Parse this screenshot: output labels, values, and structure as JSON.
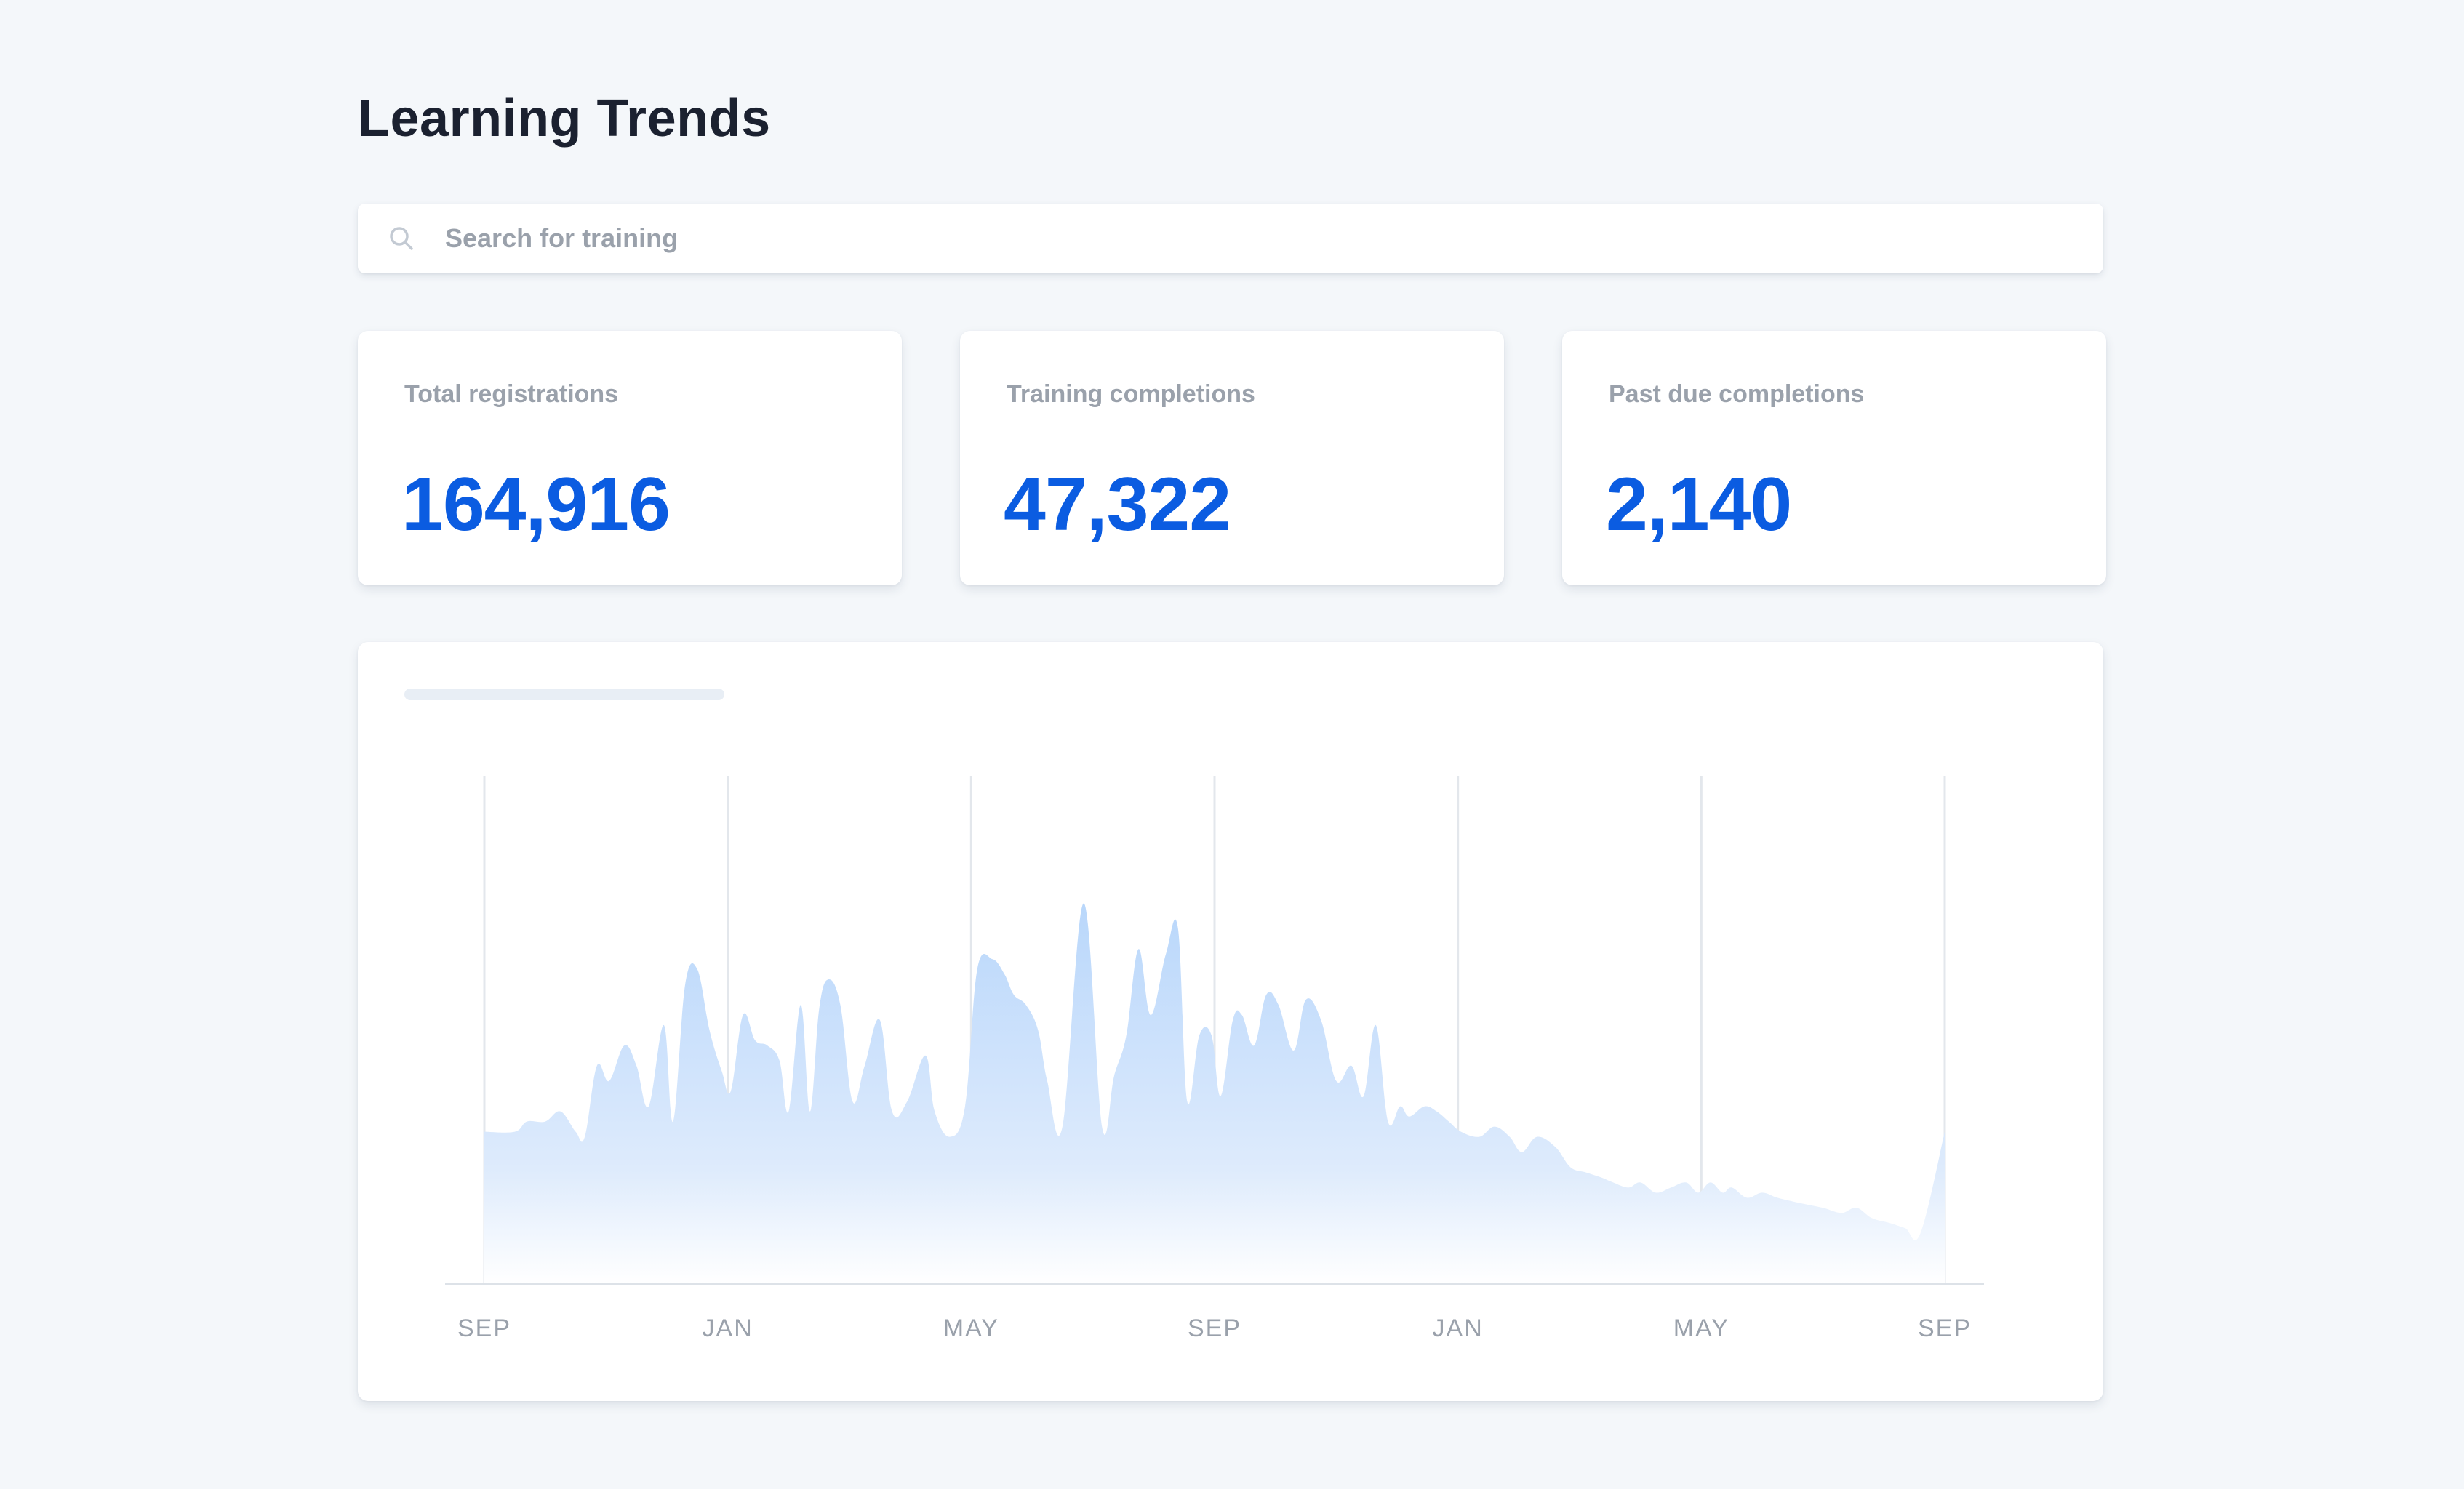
{
  "header": {
    "title": "Learning Trends"
  },
  "search": {
    "placeholder": "Search for training",
    "value": "",
    "icon": "search-icon"
  },
  "stats": [
    {
      "label": "Total registrations",
      "value": "164,916"
    },
    {
      "label": "Training completions",
      "value": "47,322"
    },
    {
      "label": "Past due completions",
      "value": "2,140"
    }
  ],
  "colors": {
    "accent": "#0b5ce1",
    "title": "#1b2130",
    "muted": "#9aa1ab",
    "area_top": "#b9d7fb",
    "area_bottom": "#ffffff",
    "grid": "#e3e7ec"
  },
  "chart_data": {
    "type": "area",
    "title": "",
    "xlabel": "",
    "ylabel": "",
    "grid": "vertical",
    "ylim": [
      0,
      100
    ],
    "xlim": [
      0,
      24
    ],
    "tick_labels": [
      "SEP",
      "JAN",
      "MAY",
      "SEP",
      "JAN",
      "MAY",
      "SEP"
    ],
    "tick_positions": [
      0,
      4,
      8,
      12,
      16,
      20,
      24
    ],
    "x": [
      0,
      0.5,
      0.7,
      1.0,
      1.25,
      1.5,
      1.65,
      1.85,
      2.05,
      2.3,
      2.5,
      2.7,
      2.95,
      3.1,
      3.3,
      3.5,
      3.7,
      3.9,
      4.05,
      4.25,
      4.45,
      4.65,
      4.85,
      5.0,
      5.2,
      5.35,
      5.5,
      5.65,
      5.85,
      6.05,
      6.25,
      6.5,
      6.7,
      6.95,
      7.25,
      7.4,
      7.65,
      7.9,
      8.1,
      8.35,
      8.55,
      8.7,
      8.9,
      9.1,
      9.25,
      9.5,
      9.85,
      10.15,
      10.35,
      10.55,
      10.75,
      10.95,
      11.2,
      11.4,
      11.55,
      11.75,
      11.95,
      12.1,
      12.3,
      12.45,
      12.65,
      12.85,
      13.05,
      13.3,
      13.5,
      13.75,
      14.0,
      14.25,
      14.45,
      14.65,
      14.85,
      15.05,
      15.2,
      15.45,
      15.65,
      15.85,
      16.05,
      16.35,
      16.6,
      16.85,
      17.05,
      17.3,
      17.6,
      17.85,
      18.1,
      18.35,
      18.55,
      18.8,
      19.0,
      19.25,
      19.5,
      19.75,
      19.95,
      20.15,
      20.35,
      20.5,
      20.75,
      21.0,
      21.25,
      21.6,
      22.0,
      22.3,
      22.55,
      22.8,
      23.1,
      23.35,
      23.6,
      24.0
    ],
    "values": [
      30,
      30,
      32,
      32,
      34,
      30,
      29,
      43,
      40,
      47,
      43,
      35,
      51,
      32,
      59,
      62,
      50,
      42,
      38,
      53,
      48,
      47,
      44,
      34,
      55,
      34,
      54,
      60,
      55,
      36,
      43,
      52,
      34,
      36,
      45,
      34,
      29,
      35,
      62,
      64,
      61,
      57,
      55,
      50,
      40,
      31,
      75,
      31,
      41,
      49,
      66,
      53,
      65,
      70,
      36,
      49,
      49,
      37,
      52,
      53,
      47,
      57,
      55,
      46,
      56,
      52,
      40,
      43,
      37,
      51,
      32,
      35,
      33,
      35,
      34,
      32,
      30,
      29,
      31,
      29,
      26,
      29,
      27,
      23,
      22,
      21,
      20,
      19,
      20,
      18,
      19,
      20,
      18,
      20,
      18,
      19,
      17,
      18,
      17,
      16,
      15,
      14,
      15,
      13,
      12,
      11,
      10,
      30
    ]
  }
}
